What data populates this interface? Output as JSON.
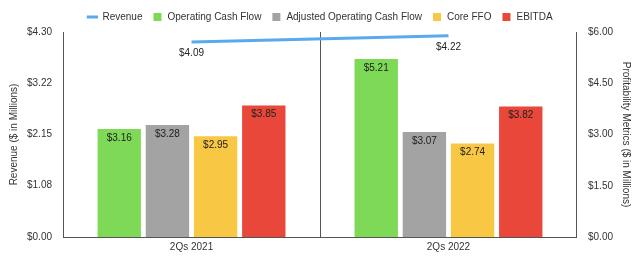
{
  "chart_data": {
    "type": "bar",
    "categories": [
      "2Qs 2021",
      "2Qs 2022"
    ],
    "y_label": "Revenue ($ in Millions)",
    "y2_label": "Profitability Metrics ($ in Millions)",
    "ylim": [
      0,
      4.3
    ],
    "yticks": [
      {
        "value": 0,
        "label": "$0.00"
      },
      {
        "value": 1.08,
        "label": "$1.08"
      },
      {
        "value": 2.15,
        "label": "$2.15"
      },
      {
        "value": 3.22,
        "label": "$3.22"
      },
      {
        "value": 4.3,
        "label": "$4.30"
      }
    ],
    "y2lim": [
      0,
      6
    ],
    "y2ticks": [
      {
        "value": 0,
        "label": "$0.00"
      },
      {
        "value": 1.5,
        "label": "$1.50"
      },
      {
        "value": 3,
        "label": "$3.00"
      },
      {
        "value": 4.5,
        "label": "$4.50"
      },
      {
        "value": 6,
        "label": "$6.00"
      }
    ],
    "legend": "top",
    "grid": false,
    "data_labels": true,
    "series": [
      {
        "name": "Revenue",
        "type": "line",
        "color": "#5aa9ef",
        "values": [
          4.09,
          4.22
        ],
        "value_labels": [
          "$4.09",
          "$4.22"
        ]
      },
      {
        "name": "Operating Cash Flow",
        "type": "bar",
        "axis": "y2",
        "color": "#7ed957",
        "values": [
          3.16,
          5.21
        ],
        "value_labels": [
          "$3.16",
          "$5.21"
        ]
      },
      {
        "name": "Adjusted Operating Cash Flow",
        "type": "bar",
        "axis": "y2",
        "color": "#a3a3a3",
        "values": [
          3.28,
          3.07
        ],
        "value_labels": [
          "$3.28",
          "$3.07"
        ]
      },
      {
        "name": "Core FFO",
        "type": "bar",
        "axis": "y2",
        "color": "#f8c744",
        "values": [
          2.95,
          2.74
        ],
        "value_labels": [
          "$2.95",
          "$2.74"
        ]
      },
      {
        "name": "EBITDA",
        "type": "bar",
        "axis": "y2",
        "color": "#e8473a",
        "values": [
          3.85,
          3.82
        ],
        "value_labels": [
          "$3.85",
          "$3.82"
        ]
      }
    ]
  }
}
